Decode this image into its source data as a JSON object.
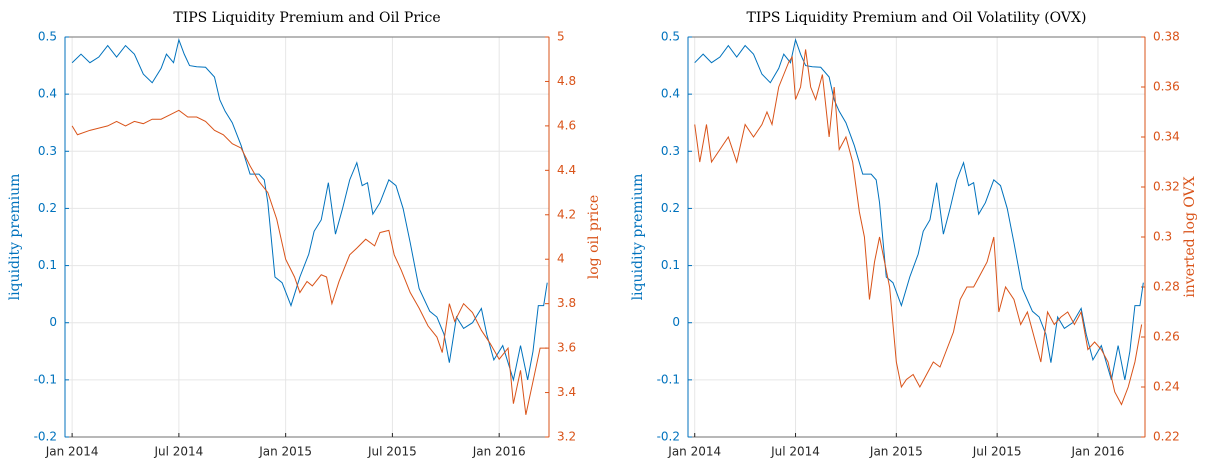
{
  "chart_data": [
    {
      "type": "line",
      "title": "TIPS Liquidity Premium and Oil Price",
      "ylabel": "liquidity premium",
      "y2label": "log oil price",
      "grid": true,
      "xlim": [
        -0.4,
        26.8
      ],
      "xticks": [
        {
          "value": 0,
          "label": "Jan 2014"
        },
        {
          "value": 6,
          "label": "Jul 2014"
        },
        {
          "value": 12,
          "label": "Jan 2015"
        },
        {
          "value": 18,
          "label": "Jul 2015"
        },
        {
          "value": 24,
          "label": "Jan 2016"
        }
      ],
      "ylim": [
        -0.2,
        0.5
      ],
      "yticks": [
        -0.2,
        -0.1,
        0,
        0.1,
        0.2,
        0.3,
        0.4,
        0.5
      ],
      "y2lim": [
        3.2,
        5
      ],
      "y2ticks": [
        3.2,
        3.4,
        3.6,
        3.8,
        4,
        4.2,
        4.4,
        4.6,
        4.8,
        5
      ],
      "series": [
        {
          "color": "#0072bd",
          "x": [
            0,
            0.5,
            1,
            1.5,
            2,
            2.5,
            3,
            3.5,
            4,
            4.5,
            5,
            5.3,
            5.7,
            6,
            6.3,
            6.6,
            7,
            7.5,
            8,
            8.3,
            8.6,
            9,
            9.5,
            10,
            10.5,
            10.8,
            11,
            11.4,
            11.8,
            12.3,
            12.8,
            13.3,
            13.6,
            14,
            14.4,
            14.8,
            15.2,
            15.6,
            16,
            16.3,
            16.6,
            16.9,
            17.3,
            17.8,
            18.2,
            18.6,
            19,
            19.5,
            20.1,
            20.5,
            20.9,
            21.2,
            21.6,
            22,
            22.5,
            23,
            23.3,
            23.7,
            24.2,
            24.8,
            25.2,
            25.6,
            25.9,
            26.2,
            26.5,
            26.7
          ],
          "values": [
            0.455,
            0.47,
            0.455,
            0.465,
            0.485,
            0.465,
            0.485,
            0.47,
            0.435,
            0.42,
            0.445,
            0.47,
            0.455,
            0.495,
            0.47,
            0.45,
            0.448,
            0.447,
            0.43,
            0.39,
            0.37,
            0.35,
            0.31,
            0.26,
            0.26,
            0.25,
            0.21,
            0.08,
            0.07,
            0.03,
            0.08,
            0.12,
            0.16,
            0.18,
            0.245,
            0.155,
            0.2,
            0.25,
            0.28,
            0.24,
            0.245,
            0.19,
            0.21,
            0.25,
            0.24,
            0.2,
            0.14,
            0.06,
            0.02,
            0.01,
            -0.02,
            -0.07,
            0.01,
            -0.01,
            0,
            0.025,
            -0.02,
            -0.065,
            -0.04,
            -0.1,
            -0.04,
            -0.1,
            -0.05,
            0.03,
            0.03,
            0.07
          ]
        },
        {
          "color": "#d95319",
          "axis": "y2",
          "x": [
            0,
            0.3,
            1,
            2,
            2.5,
            3,
            3.5,
            4,
            4.5,
            5,
            5.5,
            6,
            6.5,
            7,
            7.5,
            8,
            8.5,
            9,
            9.5,
            10,
            10.5,
            11,
            11.5,
            12,
            12.5,
            12.8,
            13.2,
            13.5,
            14,
            14.3,
            14.6,
            15,
            15.3,
            15.6,
            16,
            16.5,
            17,
            17.3,
            17.8,
            18.1,
            18.5,
            19,
            19.5,
            20,
            20.5,
            20.8,
            21.2,
            21.5,
            22,
            22.5,
            23,
            23.5,
            24,
            24.5,
            24.8,
            25.2,
            25.5,
            25.9,
            26.3,
            26.7
          ],
          "values": [
            4.6,
            4.56,
            4.58,
            4.6,
            4.62,
            4.6,
            4.62,
            4.61,
            4.63,
            4.63,
            4.65,
            4.67,
            4.64,
            4.64,
            4.62,
            4.58,
            4.56,
            4.52,
            4.5,
            4.42,
            4.35,
            4.3,
            4.18,
            4,
            3.92,
            3.85,
            3.9,
            3.88,
            3.93,
            3.92,
            3.8,
            3.9,
            3.96,
            4.02,
            4.05,
            4.09,
            4.06,
            4.12,
            4.13,
            4.02,
            3.95,
            3.85,
            3.78,
            3.7,
            3.65,
            3.58,
            3.8,
            3.72,
            3.8,
            3.76,
            3.68,
            3.62,
            3.55,
            3.6,
            3.35,
            3.5,
            3.3,
            3.45,
            3.6,
            3.6
          ]
        }
      ]
    },
    {
      "type": "line",
      "title": "TIPS Liquidity Premium and Oil Volatility (OVX)",
      "ylabel": "liquidity premium",
      "y2label": "inverted log OVX",
      "grid": true,
      "xlim": [
        -0.4,
        26.8
      ],
      "xticks": [
        {
          "value": 0,
          "label": "Jan 2014"
        },
        {
          "value": 6,
          "label": "Jul 2014"
        },
        {
          "value": 12,
          "label": "Jan 2015"
        },
        {
          "value": 18,
          "label": "Jul 2015"
        },
        {
          "value": 24,
          "label": "Jan 2016"
        }
      ],
      "ylim": [
        -0.2,
        0.5
      ],
      "yticks": [
        -0.2,
        -0.1,
        0,
        0.1,
        0.2,
        0.3,
        0.4,
        0.5
      ],
      "y2lim": [
        0.22,
        0.38
      ],
      "y2ticks": [
        0.22,
        0.24,
        0.26,
        0.28,
        0.3,
        0.32,
        0.34,
        0.36,
        0.38
      ],
      "series": [
        {
          "color": "#0072bd",
          "x": [
            0,
            0.5,
            1,
            1.5,
            2,
            2.5,
            3,
            3.5,
            4,
            4.5,
            5,
            5.3,
            5.7,
            6,
            6.3,
            6.6,
            7,
            7.5,
            8,
            8.3,
            8.6,
            9,
            9.5,
            10,
            10.5,
            10.8,
            11,
            11.4,
            11.8,
            12.3,
            12.8,
            13.3,
            13.6,
            14,
            14.4,
            14.8,
            15.2,
            15.6,
            16,
            16.3,
            16.6,
            16.9,
            17.3,
            17.8,
            18.2,
            18.6,
            19,
            19.5,
            20.1,
            20.5,
            20.9,
            21.2,
            21.6,
            22,
            22.5,
            23,
            23.3,
            23.7,
            24.2,
            24.8,
            25.2,
            25.6,
            25.9,
            26.2,
            26.5,
            26.7
          ],
          "values": [
            0.455,
            0.47,
            0.455,
            0.465,
            0.485,
            0.465,
            0.485,
            0.47,
            0.435,
            0.42,
            0.445,
            0.47,
            0.455,
            0.495,
            0.47,
            0.45,
            0.448,
            0.447,
            0.43,
            0.39,
            0.37,
            0.35,
            0.31,
            0.26,
            0.26,
            0.25,
            0.21,
            0.08,
            0.07,
            0.03,
            0.08,
            0.12,
            0.16,
            0.18,
            0.245,
            0.155,
            0.2,
            0.25,
            0.28,
            0.24,
            0.245,
            0.19,
            0.21,
            0.25,
            0.24,
            0.2,
            0.14,
            0.06,
            0.02,
            0.01,
            -0.02,
            -0.07,
            0.01,
            -0.01,
            0,
            0.025,
            -0.02,
            -0.065,
            -0.04,
            -0.1,
            -0.04,
            -0.1,
            -0.05,
            0.03,
            0.03,
            0.07
          ]
        },
        {
          "color": "#d95319",
          "axis": "y2",
          "x": [
            0,
            0.3,
            0.7,
            1,
            1.5,
            2,
            2.5,
            3,
            3.5,
            4,
            4.3,
            4.6,
            5,
            5.3,
            5.6,
            5.8,
            6,
            6.3,
            6.6,
            6.9,
            7.2,
            7.6,
            8,
            8.3,
            8.6,
            9,
            9.4,
            9.8,
            10.1,
            10.4,
            10.7,
            11,
            11.3,
            11.6,
            12,
            12.3,
            12.6,
            13,
            13.4,
            13.8,
            14.2,
            14.6,
            15,
            15.4,
            15.8,
            16.2,
            16.6,
            17,
            17.4,
            17.8,
            18.1,
            18.5,
            19,
            19.4,
            19.8,
            20.2,
            20.6,
            21,
            21.4,
            21.8,
            22.2,
            22.6,
            23,
            23.4,
            23.8,
            24.2,
            24.6,
            25,
            25.4,
            25.8,
            26.2,
            26.6
          ],
          "values": [
            0.345,
            0.33,
            0.345,
            0.33,
            0.335,
            0.34,
            0.33,
            0.345,
            0.34,
            0.345,
            0.35,
            0.345,
            0.36,
            0.365,
            0.37,
            0.372,
            0.355,
            0.36,
            0.375,
            0.36,
            0.355,
            0.365,
            0.34,
            0.36,
            0.335,
            0.34,
            0.33,
            0.31,
            0.3,
            0.275,
            0.29,
            0.3,
            0.29,
            0.28,
            0.25,
            0.24,
            0.243,
            0.245,
            0.24,
            0.245,
            0.25,
            0.248,
            0.255,
            0.262,
            0.275,
            0.28,
            0.28,
            0.285,
            0.29,
            0.3,
            0.27,
            0.28,
            0.275,
            0.265,
            0.27,
            0.26,
            0.25,
            0.27,
            0.265,
            0.268,
            0.27,
            0.265,
            0.27,
            0.255,
            0.258,
            0.255,
            0.25,
            0.238,
            0.233,
            0.24,
            0.25,
            0.265
          ]
        }
      ]
    }
  ]
}
